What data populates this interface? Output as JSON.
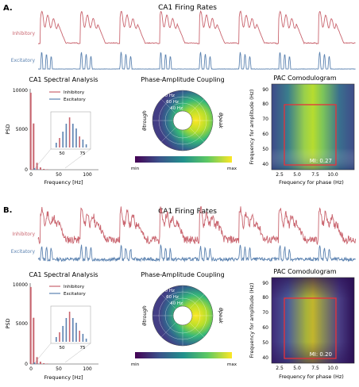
{
  "panels": [
    {
      "label": "A.",
      "firing": {
        "title": "CA1 Firing Rates",
        "inh_label": "Inhibitory",
        "exc_label": "Excitatory",
        "noisy": false
      },
      "spectral": {
        "title": "CA1 Spectral Analysis",
        "ylabel": "PSD",
        "xlabel": "Frequency [Hz]",
        "yticks": [
          "0",
          "5000",
          "10000"
        ],
        "xticks": [
          "0",
          "50",
          "100"
        ],
        "legend": [
          "Inhibitory",
          "Excitatory"
        ],
        "inset_xticks": [
          "50",
          "75"
        ]
      },
      "pac": {
        "title": "Phase-Amplitude Coupling",
        "rings": [
          "80 Hz",
          "60 Hz",
          "40 Hz"
        ],
        "left_label": "θtrough",
        "right_label": "θpeak",
        "cbar_min": "min",
        "cbar_max": "max"
      },
      "comod": {
        "title": "PAC Comodulogram",
        "xlabel": "Frequency for phase (Hz)",
        "ylabel": "Frequency for amplitude (Hz)",
        "xticks": [
          "2.5",
          "5.0",
          "7.5",
          "10.0"
        ],
        "yticks": [
          "40",
          "50",
          "60",
          "70",
          "80",
          "90"
        ],
        "mi": "MI: 0.27"
      }
    },
    {
      "label": "B.",
      "firing": {
        "title": "CA1 Firing Rates",
        "inh_label": "Inhibitory",
        "exc_label": "Excitatory",
        "noisy": true
      },
      "spectral": {
        "title": "CA1 Spectral Analysis",
        "ylabel": "PSD",
        "xlabel": "Frequency [Hz]",
        "yticks": [
          "0",
          "5000",
          "10000"
        ],
        "xticks": [
          "0",
          "50",
          "100"
        ],
        "legend": [
          "Inhibitory",
          "Excitatory"
        ],
        "inset_xticks": [
          "50",
          "75"
        ]
      },
      "pac": {
        "title": "Phase-Amplitude Coupling",
        "rings": [
          "80 Hz",
          "60 Hz",
          "40 Hz"
        ],
        "left_label": "θtrough",
        "right_label": "θpeak",
        "cbar_min": "min",
        "cbar_max": "max"
      },
      "comod": {
        "title": "PAC Comodulogram",
        "xlabel": "Frequency for phase (Hz)",
        "ylabel": "Frequency for amplitude (Hz)",
        "xticks": [
          "2.5",
          "5.0",
          "7.5",
          "10.0"
        ],
        "yticks": [
          "40",
          "50",
          "60",
          "70",
          "80",
          "90"
        ],
        "mi": "MI: 0.20"
      }
    }
  ],
  "colors": {
    "inhibitory": "#c9646e",
    "excitatory": "#5b82b0",
    "highlight": "#e8313a"
  },
  "chart_data": [
    {
      "type": "line",
      "title": "CA1 Firing Rates",
      "series": [
        {
          "name": "Inhibitory",
          "bursts": 8
        },
        {
          "name": "Excitatory",
          "bursts": 8
        }
      ]
    },
    {
      "type": "bar",
      "title": "CA1 Spectral Analysis",
      "xlabel": "Frequency [Hz]",
      "ylabel": "PSD",
      "xlim": [
        0,
        120
      ],
      "ylim": [
        0,
        10500
      ],
      "series": [
        {
          "name": "Inhibitory",
          "x": [
            1,
            6,
            12,
            18,
            24,
            30
          ],
          "values": [
            10000,
            6000,
            900,
            300,
            100,
            50
          ]
        },
        {
          "name": "Excitatory",
          "x": [
            6,
            12
          ],
          "values": [
            200,
            50
          ]
        }
      ]
    },
    {
      "type": "heatmap",
      "title": "PAC Comodulogram",
      "xlabel": "Frequency for phase (Hz)",
      "ylabel": "Frequency for amplitude (Hz)",
      "xlim": [
        2,
        11.5
      ],
      "ylim": [
        37,
        93
      ],
      "hotspot_phase_hz": 5.0,
      "box": {
        "x": [
          3,
          9
        ],
        "y": [
          40,
          80
        ]
      },
      "mi": [
        0.27,
        0.2
      ]
    }
  ]
}
